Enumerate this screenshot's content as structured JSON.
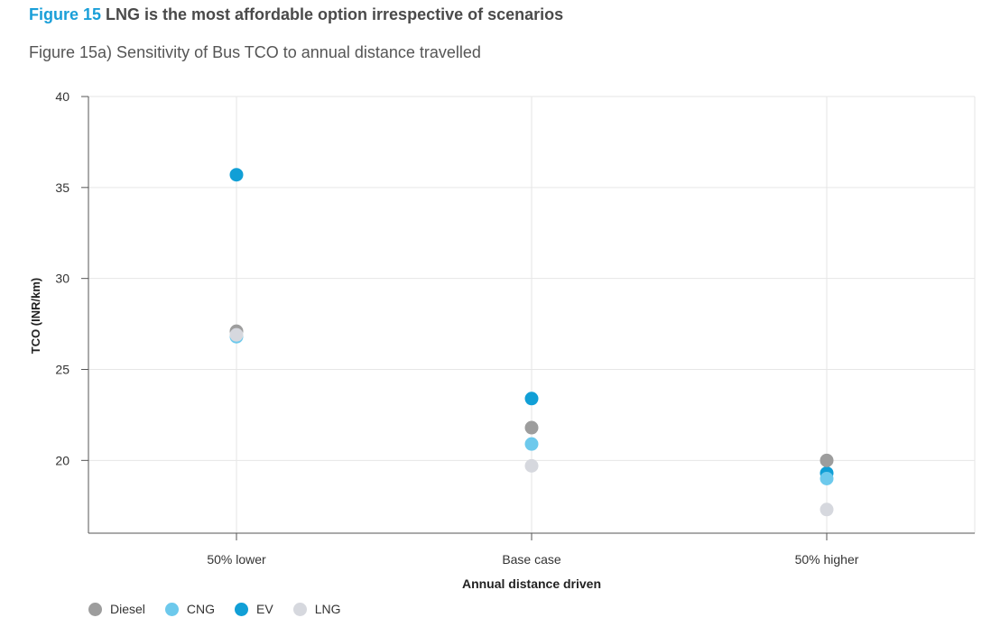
{
  "figure": {
    "number": "Figure 15",
    "title": " LNG is the most affordable option irrespective of scenarios",
    "subtitle": "Figure 15a) Sensitivity of Bus TCO to annual distance travelled"
  },
  "chart_data": {
    "type": "scatter",
    "categories": [
      "50% lower",
      "Base case",
      "50% higher"
    ],
    "xlabel": "Annual distance driven",
    "ylabel": "TCO (INR/km)",
    "ylim": [
      16,
      40
    ],
    "yticks": [
      20,
      25,
      30,
      35,
      40
    ],
    "grid": true,
    "legend_position": "bottom-left",
    "series": [
      {
        "name": "Diesel",
        "color": "#9d9d9d",
        "values": [
          27.1,
          21.8,
          20.0
        ]
      },
      {
        "name": "CNG",
        "color": "#6dc9ec",
        "values": [
          26.8,
          20.9,
          19.0
        ]
      },
      {
        "name": "EV",
        "color": "#119fd6",
        "values": [
          35.7,
          23.4,
          19.3
        ]
      },
      {
        "name": "LNG",
        "color": "#d6d8de",
        "values": [
          26.9,
          19.7,
          17.3
        ]
      }
    ]
  }
}
